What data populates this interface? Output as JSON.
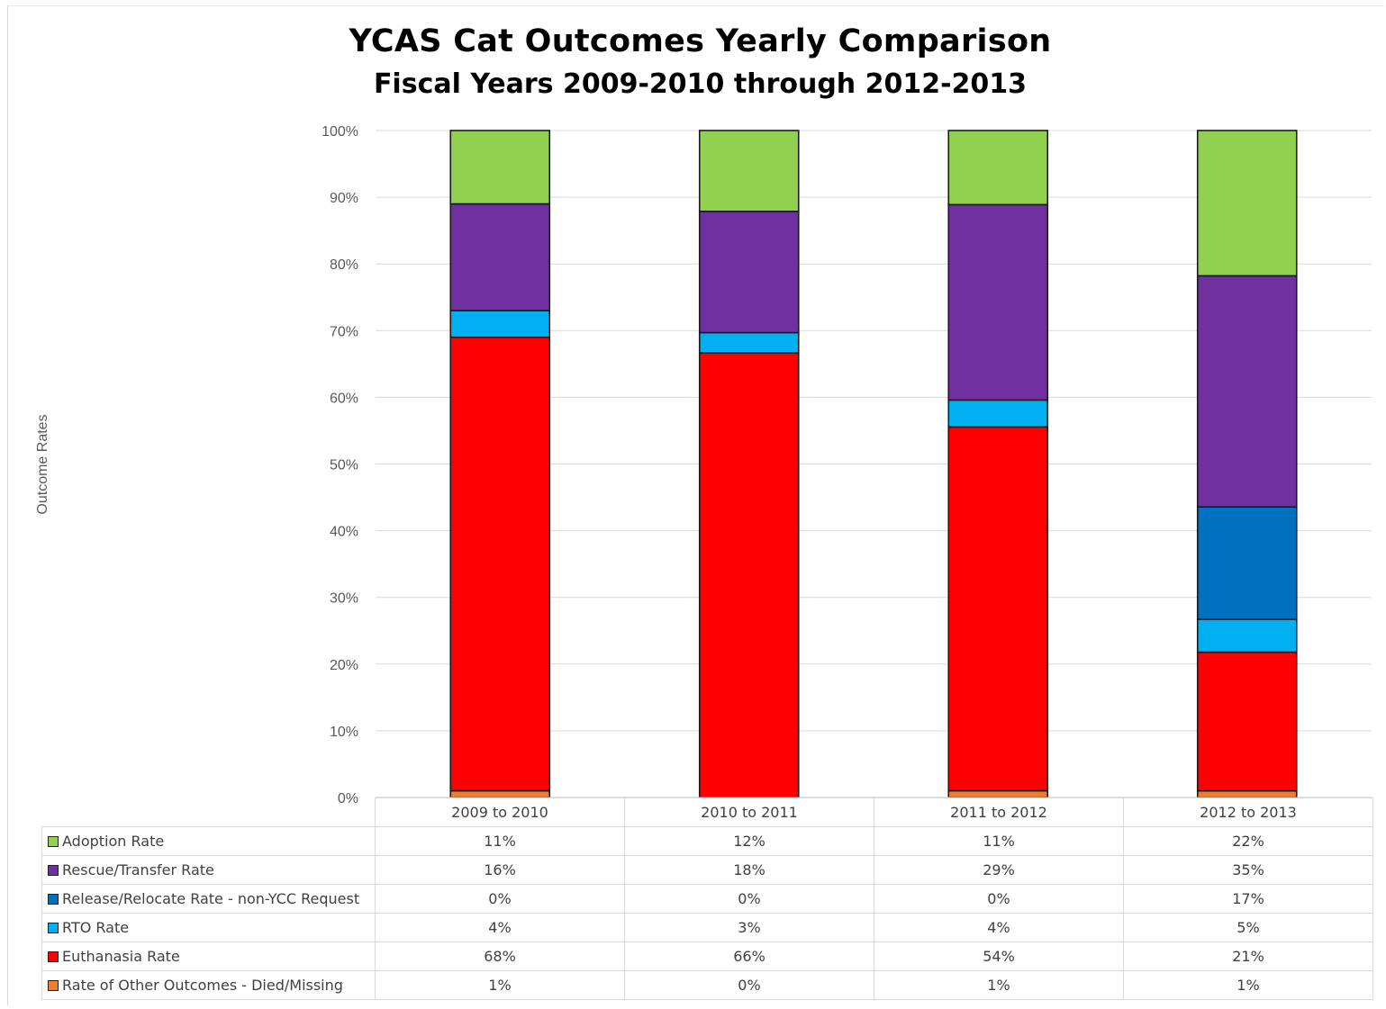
{
  "chart_data": {
    "type": "bar",
    "stacked": true,
    "title": "YCAS Cat Outcomes Yearly Comparison",
    "subtitle": "Fiscal Years 2009-2010 through 2012-2013",
    "ylabel": "Outcome Rates",
    "ylim": [
      0,
      100
    ],
    "yticks": [
      "0%",
      "10%",
      "20%",
      "30%",
      "40%",
      "50%",
      "60%",
      "70%",
      "80%",
      "90%",
      "100%"
    ],
    "grid": true,
    "legend": "data-table",
    "categories": [
      "2009 to 2010",
      "2010 to 2011",
      "2011 to 2012",
      "2012 to 2013"
    ],
    "series": [
      {
        "name": "Adoption Rate",
        "color": "#92d050",
        "values": [
          11,
          12,
          11,
          22
        ],
        "labels": [
          "11%",
          "12%",
          "11%",
          "22%"
        ]
      },
      {
        "name": "Rescue/Transfer Rate",
        "color": "#7030a0",
        "values": [
          16,
          18,
          29,
          35
        ],
        "labels": [
          "16%",
          "18%",
          "29%",
          "35%"
        ]
      },
      {
        "name": "Release/Relocate Rate - non-YCC Request",
        "color": "#0070c0",
        "values": [
          0,
          0,
          0,
          17
        ],
        "labels": [
          "0%",
          "0%",
          "0%",
          "17%"
        ]
      },
      {
        "name": "RTO Rate",
        "color": "#00b0f0",
        "values": [
          4,
          3,
          4,
          5
        ],
        "labels": [
          "4%",
          "3%",
          "4%",
          "5%"
        ]
      },
      {
        "name": "Euthanasia Rate",
        "color": "#ff0000",
        "values": [
          68,
          66,
          54,
          21
        ],
        "labels": [
          "68%",
          "66%",
          "54%",
          "21%"
        ]
      },
      {
        "name": "Rate of Other Outcomes - Died/Missing",
        "color": "#ed7d31",
        "values": [
          1,
          0,
          1,
          1
        ],
        "labels": [
          "1%",
          "0%",
          "1%",
          "1%"
        ]
      }
    ]
  }
}
